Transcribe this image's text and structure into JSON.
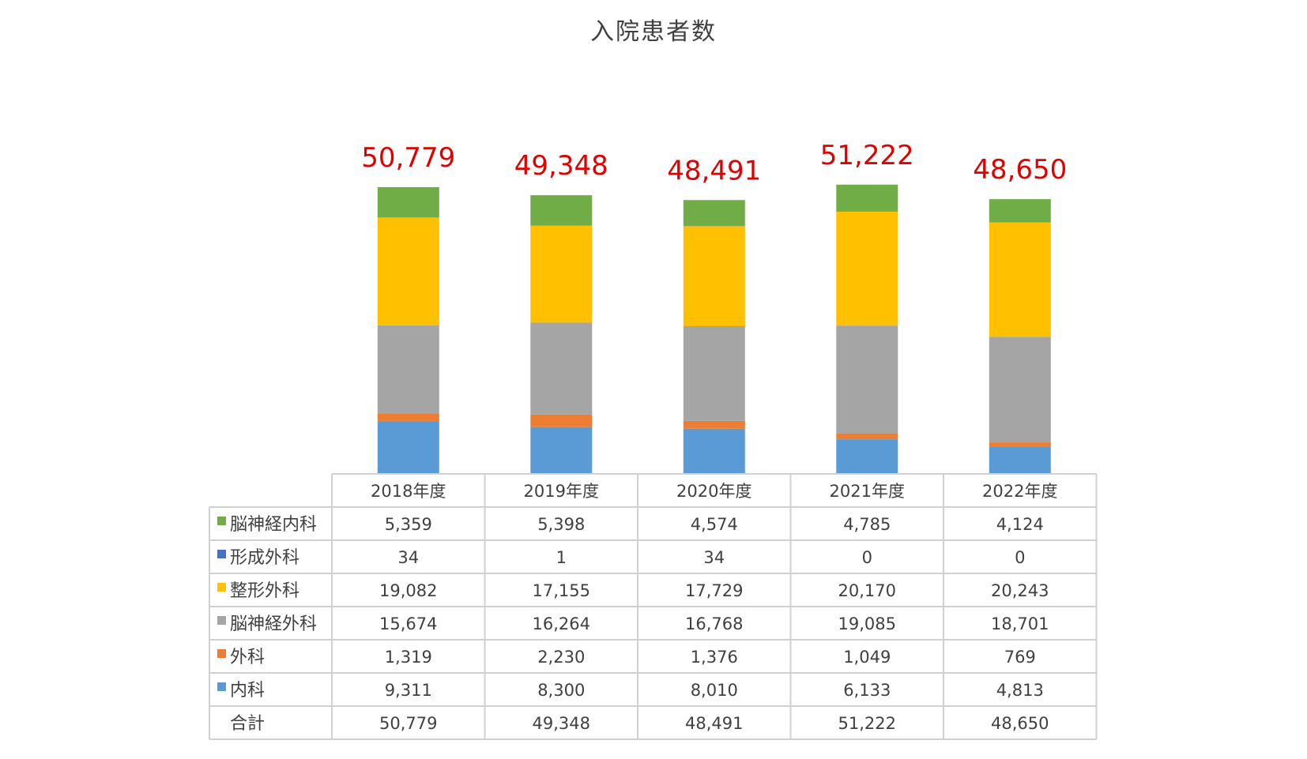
{
  "chart_data": {
    "type": "bar",
    "stacked": true,
    "title": "入院患者数",
    "categories": [
      "2018年度",
      "2019年度",
      "2020年度",
      "2021年度",
      "2022年度"
    ],
    "series": [
      {
        "name": "内科",
        "color": "#5b9bd5",
        "values": [
          9311,
          8300,
          8010,
          6133,
          4813
        ],
        "labels": [
          "9,311",
          "8,300",
          "8,010",
          "6,133",
          "4,813"
        ]
      },
      {
        "name": "外科",
        "color": "#ed7d31",
        "values": [
          1319,
          2230,
          1376,
          1049,
          769
        ],
        "labels": [
          "1,319",
          "2,230",
          "1,376",
          "1,049",
          "769"
        ]
      },
      {
        "name": "脳神経外科",
        "color": "#a5a5a5",
        "values": [
          15674,
          16264,
          16768,
          19085,
          18701
        ],
        "labels": [
          "15,674",
          "16,264",
          "16,768",
          "19,085",
          "18,701"
        ]
      },
      {
        "name": "整形外科",
        "color": "#ffc000",
        "values": [
          19082,
          17155,
          17729,
          20170,
          20243
        ],
        "labels": [
          "19,082",
          "17,155",
          "17,729",
          "20,170",
          "20,243"
        ]
      },
      {
        "name": "形成外科",
        "color": "#4472c4",
        "values": [
          34,
          1,
          34,
          0,
          0
        ],
        "labels": [
          "34",
          "1",
          "34",
          "0",
          "0"
        ]
      },
      {
        "name": "脳神経内科",
        "color": "#70ad47",
        "values": [
          5359,
          5398,
          4574,
          4785,
          4124
        ],
        "labels": [
          "5,359",
          "5,398",
          "4,574",
          "4,785",
          "4,124"
        ]
      }
    ],
    "totals": [
      50779,
      49348,
      48491,
      51222,
      48650
    ],
    "total_labels": [
      "50,779",
      "49,348",
      "48,491",
      "51,222",
      "48,650"
    ],
    "table": {
      "row_order": [
        "脳神経内科",
        "形成外科",
        "整形外科",
        "脳神経外科",
        "外科",
        "内科"
      ],
      "total_row_label": "合計"
    },
    "legend": "data-table"
  }
}
